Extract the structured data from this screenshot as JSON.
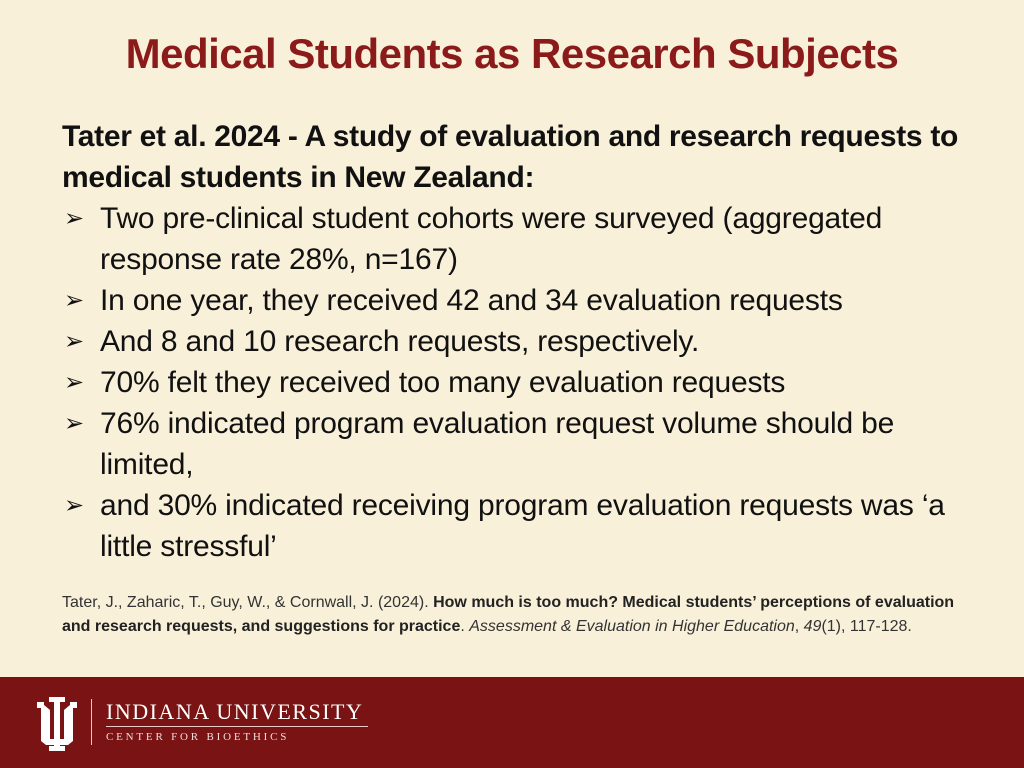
{
  "slide": {
    "title": "Medical Students as Research Subjects",
    "intro": "Tater et al. 2024 - A study of evaluation and research requests to medical students in New Zealand:",
    "bullets": [
      "Two pre-clinical student cohorts were surveyed (aggregated response rate 28%, n=167)",
      "In one year, they received 42 and 34 evaluation requests",
      "And 8 and 10 research requests, respectively.",
      "70% felt they received too many evaluation requests",
      "76% indicated program evaluation request volume should be limited,",
      "and 30% indicated receiving program evaluation requests was ‘a little stressful’"
    ],
    "bullet_icon": "arrowhead-bullet-icon"
  },
  "citation": {
    "authors": "Tater, J., Zaharic, T., Guy, W., & Cornwall, J. (2024). ",
    "article_title": "How much is too much? Medical students’ perceptions of evaluation and research requests, and suggestions for practice",
    "sep1": ". ",
    "journal": "Assessment & Evaluation in Higher Education",
    "sep2": ", ",
    "volume": "49",
    "issue_pages": "(1), 117-128."
  },
  "footer": {
    "logo_icon": "iu-trident-icon",
    "university": "INDIANA UNIVERSITY",
    "center": "CENTER FOR BIOETHICS"
  },
  "colors": {
    "background": "#f8f0d9",
    "title": "#8b1a1a",
    "footer": "#7a1313",
    "text": "#111111"
  }
}
